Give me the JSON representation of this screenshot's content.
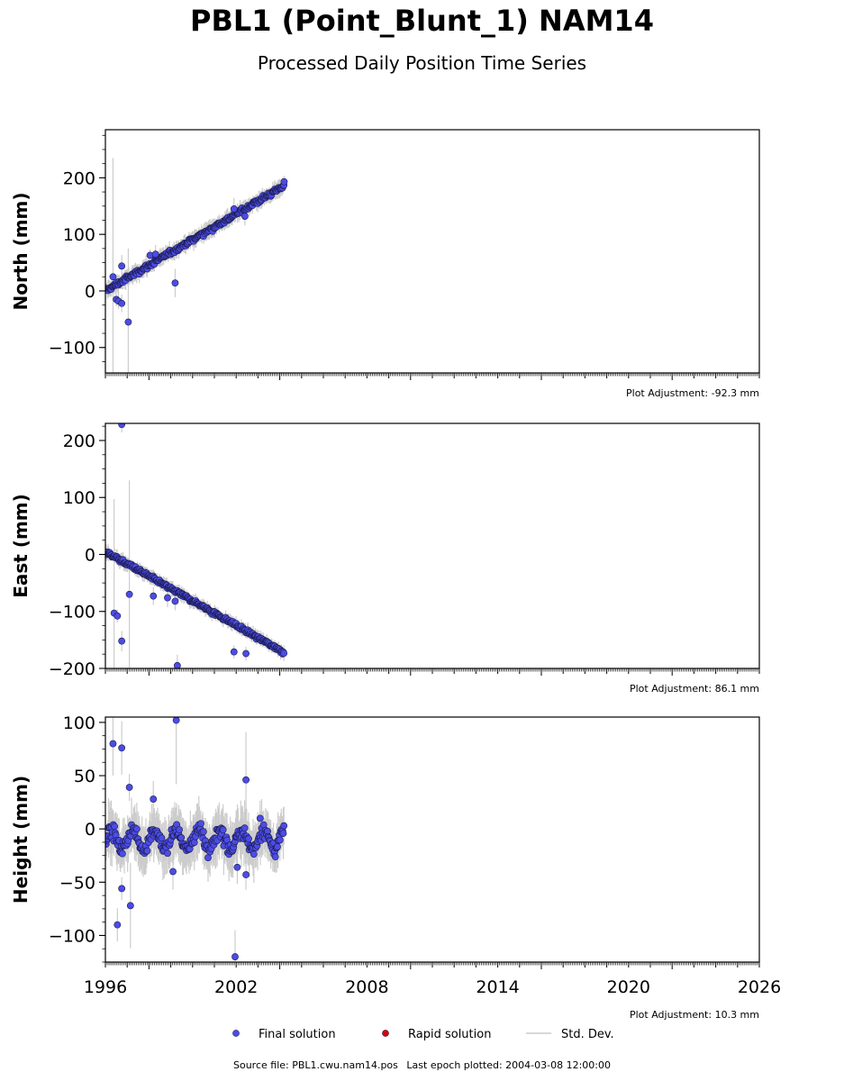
{
  "title": "PBL1 (Point_Blunt_1) NAM14",
  "subtitle": "Processed Daily Position Time Series",
  "footer": {
    "source": "Source file: PBL1.cwu.nam14.pos",
    "last_epoch": "Last epoch plotted: 2004-03-08 12:00:00"
  },
  "colors": {
    "final": "#4c4ce6",
    "rapid": "#dd0000",
    "stddev": "#cccccc",
    "edge": "#1a1a4d"
  },
  "chart_data": [
    {
      "type": "scatter",
      "ylabel": "North (mm)",
      "adjustment": "Plot Adjustment: -92.3 mm",
      "xlim": [
        1996,
        2026
      ],
      "ylim": [
        -145,
        285
      ],
      "yticks": [
        -100,
        0,
        100,
        200
      ],
      "trend": {
        "x": [
          1996.0,
          2004.2
        ],
        "y": [
          0,
          186
        ]
      },
      "noise_sd": 5,
      "outliers": [
        {
          "x": 1996.35,
          "y": 25,
          "err": 210
        },
        {
          "x": 1996.5,
          "y": -15
        },
        {
          "x": 1996.6,
          "y": -18
        },
        {
          "x": 1996.75,
          "y": -22
        },
        {
          "x": 1996.75,
          "y": 44
        },
        {
          "x": 1997.05,
          "y": -55,
          "err": 130
        },
        {
          "x": 1998.05,
          "y": 63
        },
        {
          "x": 1998.3,
          "y": 65
        },
        {
          "x": 1999.2,
          "y": 14,
          "err": 25
        },
        {
          "x": 2001.9,
          "y": 145
        },
        {
          "x": 2002.4,
          "y": 132
        },
        {
          "x": 2004.2,
          "y": 193
        }
      ]
    },
    {
      "type": "scatter",
      "ylabel": "East (mm)",
      "adjustment": "Plot Adjustment: 86.1 mm",
      "xlim": [
        1996,
        2026
      ],
      "ylim": [
        -200,
        230
      ],
      "yticks": [
        -200,
        -100,
        0,
        100,
        200
      ],
      "trend": {
        "x": [
          1996.0,
          2004.2
        ],
        "y": [
          5,
          -172
        ]
      },
      "noise_sd": 4,
      "outliers": [
        {
          "x": 1996.4,
          "y": -103,
          "err": 200
        },
        {
          "x": 1996.55,
          "y": -108
        },
        {
          "x": 1996.75,
          "y": 228
        },
        {
          "x": 1996.75,
          "y": -152
        },
        {
          "x": 1997.1,
          "y": -70,
          "err": 200
        },
        {
          "x": 1998.2,
          "y": -73
        },
        {
          "x": 1998.85,
          "y": -76
        },
        {
          "x": 1999.2,
          "y": -82
        },
        {
          "x": 1999.3,
          "y": -195
        },
        {
          "x": 2001.9,
          "y": -171
        },
        {
          "x": 2002.45,
          "y": -174
        }
      ]
    },
    {
      "type": "scatter",
      "ylabel": "Height (mm)",
      "adjustment": "Plot Adjustment: 10.3 mm",
      "xlim": [
        1996,
        2026
      ],
      "ylim": [
        -125,
        105
      ],
      "yticks": [
        -100,
        -50,
        0,
        50,
        100
      ],
      "xticks": [
        1996,
        2002,
        2008,
        2014,
        2020,
        2026
      ],
      "trend": {
        "x": [
          1996.0,
          2004.2
        ],
        "y": [
          -10,
          -10
        ]
      },
      "noise_sd": 8,
      "outliers": [
        {
          "x": 1996.35,
          "y": 80,
          "err": 30
        },
        {
          "x": 1996.55,
          "y": -90
        },
        {
          "x": 1996.75,
          "y": 76,
          "err": 25
        },
        {
          "x": 1996.75,
          "y": -56
        },
        {
          "x": 1997.1,
          "y": 39
        },
        {
          "x": 1997.15,
          "y": -72,
          "err": 40
        },
        {
          "x": 1998.2,
          "y": 28
        },
        {
          "x": 1999.1,
          "y": -40
        },
        {
          "x": 1999.25,
          "y": 102,
          "err": 60
        },
        {
          "x": 2001.95,
          "y": -120,
          "err": 25
        },
        {
          "x": 2002.05,
          "y": -36
        },
        {
          "x": 2002.45,
          "y": 46,
          "err": 45
        },
        {
          "x": 2002.45,
          "y": -43
        },
        {
          "x": 2003.1,
          "y": 10
        }
      ]
    }
  ],
  "legend": [
    {
      "label": "Final solution",
      "marker": "dot",
      "color": "#4c4ce6"
    },
    {
      "label": "Rapid solution",
      "marker": "dot",
      "color": "#dd0000"
    },
    {
      "label": "Std. Dev.",
      "marker": "line",
      "color": "#cccccc"
    }
  ]
}
